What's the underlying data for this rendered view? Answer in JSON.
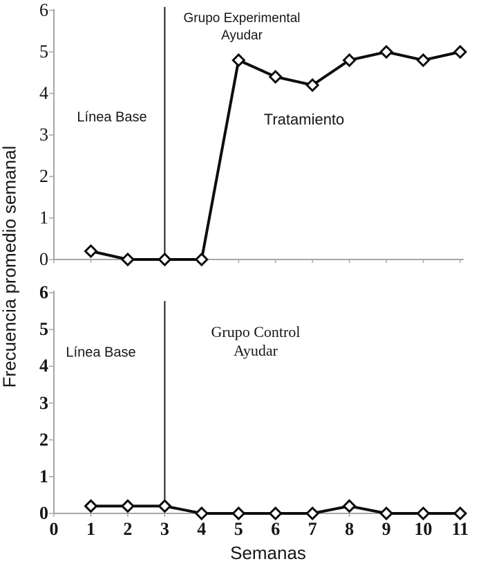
{
  "figure": {
    "ylabel": "Frecuencia promedio semanal",
    "xlabel": "Semanas"
  },
  "chart_data": [
    {
      "type": "line",
      "title": "Grupo Experimental",
      "subtitle": "Ayudar",
      "x": [
        1,
        2,
        3,
        4,
        5,
        6,
        7,
        8,
        9,
        10,
        11
      ],
      "values": [
        0.2,
        0,
        0,
        0,
        4.8,
        4.4,
        4.2,
        4.8,
        5,
        4.8,
        5
      ],
      "xlim": [
        0,
        11
      ],
      "ylim": [
        0,
        6
      ],
      "yticks": [
        0,
        1,
        2,
        3,
        4,
        5,
        6
      ],
      "xticks": [
        0,
        1,
        2,
        3,
        4,
        5,
        6,
        7,
        8,
        9,
        10,
        11
      ],
      "xtick_labels": false,
      "phase_separator_x": 3,
      "annotations": [
        {
          "text": "Línea Base",
          "x": 1.6,
          "y": 3.4
        },
        {
          "text": "Tratamiento",
          "x": 6.8,
          "y": 3.4
        }
      ],
      "marker": "open-diamond",
      "line_color": "#0d0d0d",
      "axis_color": "#a6a6a6",
      "separator_color": "#1f1f1f",
      "grid": "off",
      "legend": "none"
    },
    {
      "type": "line",
      "title": "Grupo Control",
      "subtitle": "Ayudar",
      "x": [
        1,
        2,
        3,
        4,
        5,
        6,
        7,
        8,
        9,
        10,
        11
      ],
      "values": [
        0.2,
        0.2,
        0.2,
        0,
        0,
        0,
        0,
        0.2,
        0,
        0,
        0
      ],
      "xlim": [
        0,
        11
      ],
      "ylim": [
        0,
        6
      ],
      "yticks": [
        0,
        1,
        2,
        3,
        4,
        5,
        6
      ],
      "xticks": [
        0,
        1,
        2,
        3,
        4,
        5,
        6,
        7,
        8,
        9,
        10,
        11
      ],
      "xtick_labels": true,
      "phase_separator_x": 3,
      "annotations": [
        {
          "text": "Línea Base",
          "x": 1.3,
          "y": 4.4
        }
      ],
      "marker": "open-diamond",
      "line_color": "#0d0d0d",
      "axis_color": "#a6a6a6",
      "separator_color": "#1f1f1f",
      "grid": "off",
      "legend": "none"
    }
  ]
}
